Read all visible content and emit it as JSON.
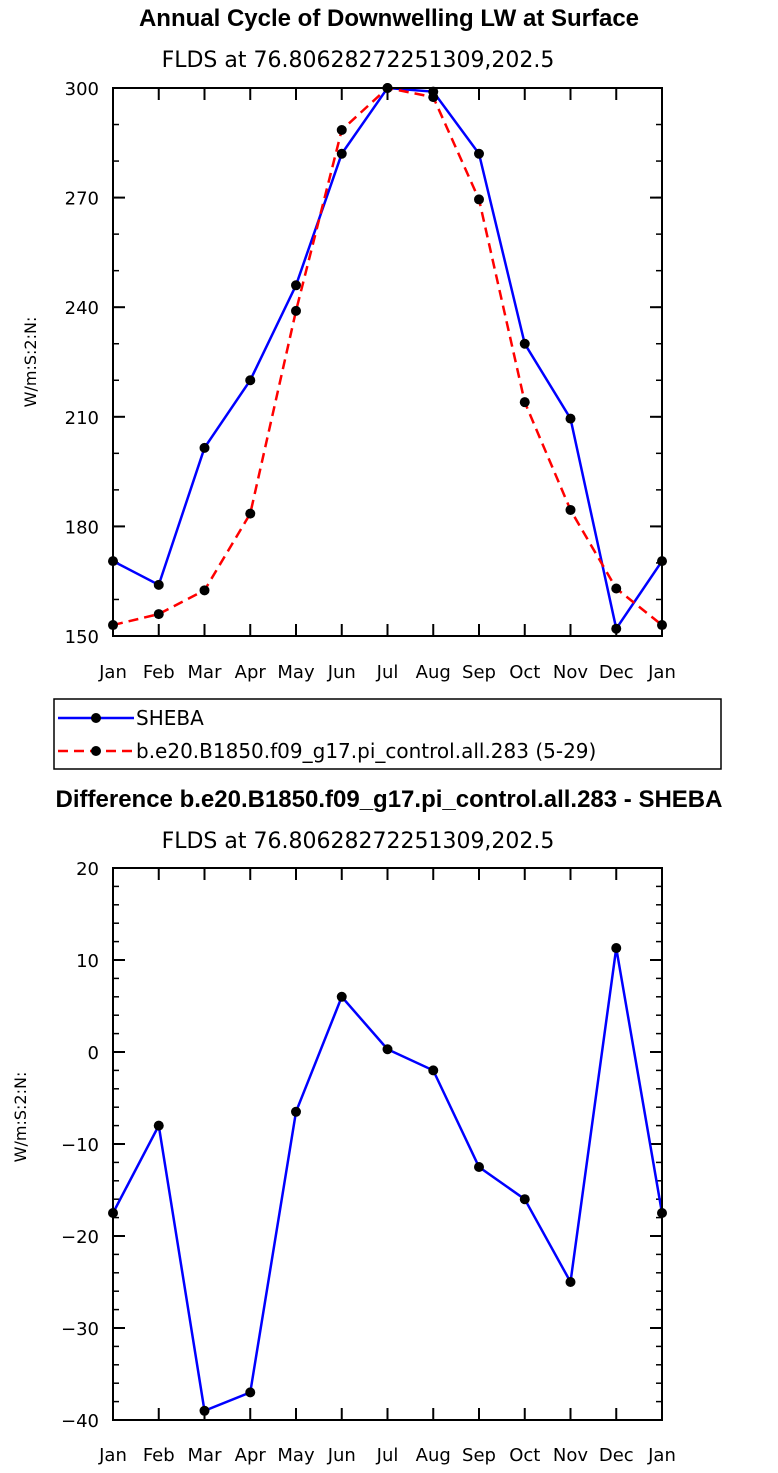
{
  "chart_data": [
    {
      "type": "line",
      "title": "Annual Cycle of Downwelling LW at Surface",
      "subtitle": "FLDS at 76.80628272251309,202.5",
      "ylabel": "W/m:S:2:N:",
      "xlabel": "",
      "categories": [
        "Jan",
        "Feb",
        "Mar",
        "Apr",
        "May",
        "Jun",
        "Jul",
        "Aug",
        "Sep",
        "Oct",
        "Nov",
        "Dec",
        "Jan"
      ],
      "ylim": [
        150,
        300
      ],
      "yticks": [
        150,
        180,
        210,
        240,
        270,
        300
      ],
      "yminor_step": 10,
      "series": [
        {
          "name": "SHEBA",
          "color": "#0000ff",
          "dash": "solid",
          "values": [
            170.5,
            164,
            201.5,
            220,
            246,
            282,
            300,
            299,
            282,
            230,
            209.5,
            152,
            170.5
          ]
        },
        {
          "name": "b.e20.B1850.f09_g17.pi_control.all.283 (5-29)",
          "color": "#ff0000",
          "dash": "dashed",
          "values": [
            153,
            156,
            162.5,
            183.5,
            239,
            288.5,
            300,
            297.5,
            269.5,
            214,
            184.5,
            163,
            153
          ]
        }
      ],
      "legend": {
        "entries": [
          "SHEBA",
          "b.e20.B1850.f09_g17.pi_control.all.283 (5-29)"
        ]
      }
    },
    {
      "type": "line",
      "title": "Difference b.e20.B1850.f09_g17.pi_control.all.283 - SHEBA",
      "subtitle": "FLDS at 76.80628272251309,202.5",
      "ylabel": "W/m:S:2:N:",
      "xlabel": "",
      "categories": [
        "Jan",
        "Feb",
        "Mar",
        "Apr",
        "May",
        "Jun",
        "Jul",
        "Aug",
        "Sep",
        "Oct",
        "Nov",
        "Dec",
        "Jan"
      ],
      "ylim": [
        -40,
        20
      ],
      "yticks": [
        -40,
        -30,
        -20,
        -10,
        0,
        10,
        20
      ],
      "yminor_step": 2,
      "series": [
        {
          "name": "Difference",
          "color": "#0000ff",
          "dash": "solid",
          "values": [
            -17.5,
            -8,
            -39,
            -37,
            -6.5,
            6,
            0.3,
            -2,
            -12.5,
            -16,
            -25,
            11.3,
            -17.5
          ]
        }
      ]
    }
  ]
}
